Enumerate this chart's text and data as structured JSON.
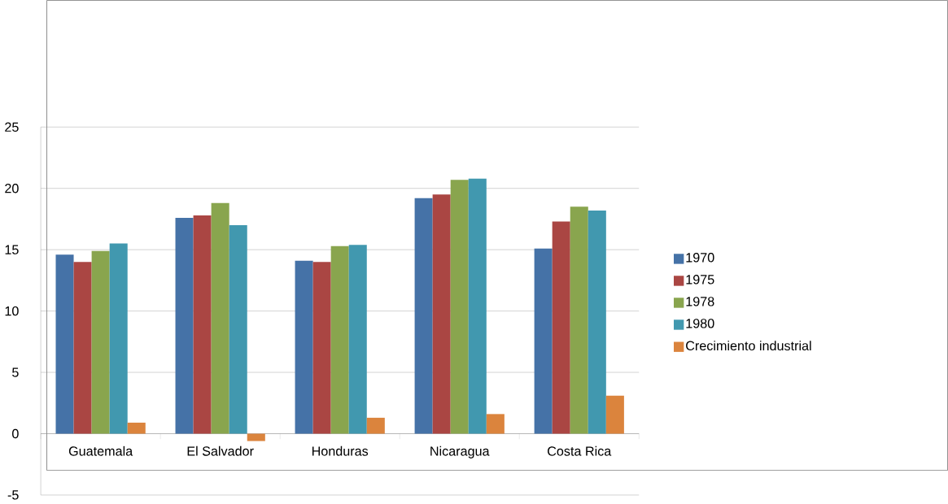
{
  "chart_data": {
    "type": "bar",
    "categories": [
      "Guatemala",
      "El Salvador",
      "Honduras",
      "Nicaragua",
      "Costa Rica"
    ],
    "series": [
      {
        "name": "1970",
        "color": "#4572a7",
        "values": [
          14.6,
          17.6,
          14.1,
          19.2,
          15.1
        ]
      },
      {
        "name": "1975",
        "color": "#aa4643",
        "values": [
          14.0,
          17.8,
          14.0,
          19.5,
          17.3
        ]
      },
      {
        "name": "1978",
        "color": "#89a54e",
        "values": [
          14.9,
          18.8,
          15.3,
          20.7,
          18.5
        ]
      },
      {
        "name": "1980",
        "color": "#4198af",
        "values": [
          15.5,
          17.0,
          15.4,
          20.8,
          18.2
        ]
      },
      {
        "name": "Crecimiento industrial",
        "color": "#db843d",
        "values": [
          0.9,
          -0.6,
          1.3,
          1.6,
          3.1
        ]
      }
    ],
    "ylim": [
      -5,
      25
    ],
    "yticks": [
      -5,
      0,
      5,
      10,
      15,
      20,
      25
    ],
    "grid": "y",
    "legend": "right"
  }
}
